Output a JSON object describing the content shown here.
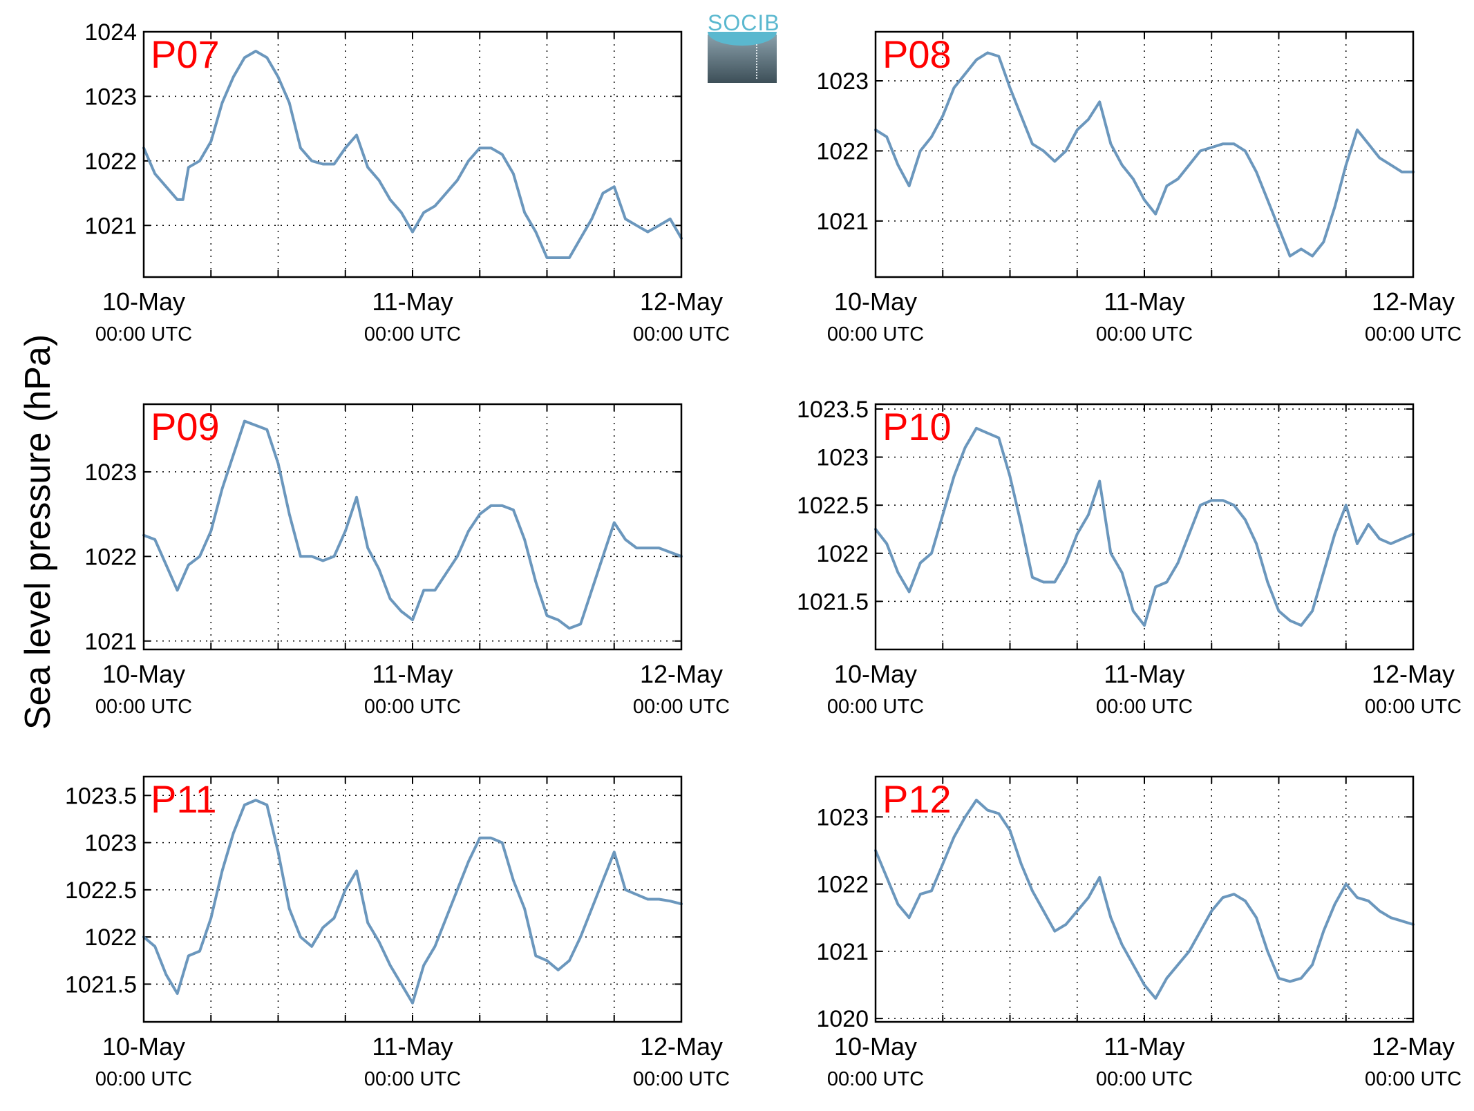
{
  "logo": {
    "text": "SOCIB"
  },
  "figure": {
    "ylabel": "Sea level pressure (hPa)",
    "line_color": "#6b97bd",
    "panel_label_color": "#ff0000"
  },
  "chart_data": [
    {
      "type": "line",
      "panel_label": "P07",
      "x_tick_labels": [
        {
          "day": "10-May",
          "time": "00:00 UTC"
        },
        {
          "day": "11-May",
          "time": "00:00 UTC"
        },
        {
          "day": "12-May",
          "time": "00:00 UTC"
        }
      ],
      "xlim_hours": [
        0,
        48
      ],
      "ylim": [
        1020.2,
        1024
      ],
      "yticks": [
        1021,
        1022,
        1023,
        1024
      ],
      "x_hours": [
        0,
        1,
        2,
        3,
        3.5,
        4,
        5,
        6,
        7,
        8,
        9,
        10,
        11,
        12,
        13,
        14,
        15,
        16,
        17,
        18,
        19,
        20,
        21,
        22,
        23,
        24,
        25,
        26,
        27,
        28,
        29,
        30,
        31,
        32,
        33,
        34,
        35,
        36,
        37,
        38,
        39,
        40,
        41,
        42,
        43,
        44,
        45,
        46,
        47,
        48
      ],
      "values": [
        1022.2,
        1021.8,
        1021.6,
        1021.4,
        1021.4,
        1021.9,
        1022.0,
        1022.3,
        1022.9,
        1023.3,
        1023.6,
        1023.7,
        1023.6,
        1023.3,
        1022.9,
        1022.2,
        1022.0,
        1021.95,
        1021.95,
        1022.2,
        1022.4,
        1021.9,
        1021.7,
        1021.4,
        1021.2,
        1020.9,
        1021.2,
        1021.3,
        1021.5,
        1021.7,
        1022.0,
        1022.2,
        1022.2,
        1022.1,
        1021.8,
        1021.2,
        1020.9,
        1020.5,
        1020.5,
        1020.5,
        1020.8,
        1021.1,
        1021.5,
        1021.6,
        1021.1,
        1021.0,
        1020.9,
        1021.0,
        1021.1,
        1020.8
      ]
    },
    {
      "type": "line",
      "panel_label": "P08",
      "x_tick_labels": [
        {
          "day": "10-May",
          "time": "00:00 UTC"
        },
        {
          "day": "11-May",
          "time": "00:00 UTC"
        },
        {
          "day": "12-May",
          "time": "00:00 UTC"
        }
      ],
      "xlim_hours": [
        0,
        48
      ],
      "ylim": [
        1020.2,
        1023.7
      ],
      "yticks": [
        1021,
        1022,
        1023
      ],
      "x_hours": [
        0,
        1,
        2,
        3,
        4,
        5,
        6,
        7,
        8,
        9,
        10,
        11,
        12,
        13,
        14,
        15,
        16,
        17,
        18,
        19,
        20,
        21,
        22,
        23,
        24,
        25,
        26,
        27,
        28,
        29,
        30,
        31,
        32,
        33,
        34,
        35,
        36,
        37,
        38,
        39,
        40,
        41,
        42,
        43,
        44,
        45,
        46,
        47,
        48
      ],
      "values": [
        1022.3,
        1022.2,
        1021.8,
        1021.5,
        1022.0,
        1022.2,
        1022.5,
        1022.9,
        1023.1,
        1023.3,
        1023.4,
        1023.35,
        1022.9,
        1022.5,
        1022.1,
        1022.0,
        1021.85,
        1022.0,
        1022.3,
        1022.45,
        1022.7,
        1022.1,
        1021.8,
        1021.6,
        1021.3,
        1021.1,
        1021.5,
        1021.6,
        1021.8,
        1022.0,
        1022.05,
        1022.1,
        1022.1,
        1022.0,
        1021.7,
        1021.3,
        1020.9,
        1020.5,
        1020.6,
        1020.5,
        1020.7,
        1021.2,
        1021.8,
        1022.3,
        1022.1,
        1021.9,
        1021.8,
        1021.7,
        1021.7
      ]
    },
    {
      "type": "line",
      "panel_label": "P09",
      "x_tick_labels": [
        {
          "day": "10-May",
          "time": "00:00 UTC"
        },
        {
          "day": "11-May",
          "time": "00:00 UTC"
        },
        {
          "day": "12-May",
          "time": "00:00 UTC"
        }
      ],
      "xlim_hours": [
        0,
        48
      ],
      "ylim": [
        1020.9,
        1023.8
      ],
      "yticks": [
        1021,
        1022,
        1023
      ],
      "x_hours": [
        0,
        1,
        2,
        3,
        4,
        5,
        6,
        7,
        8,
        9,
        10,
        11,
        12,
        13,
        14,
        15,
        16,
        17,
        18,
        19,
        20,
        21,
        22,
        23,
        24,
        25,
        26,
        27,
        28,
        29,
        30,
        31,
        32,
        33,
        34,
        35,
        36,
        37,
        38,
        39,
        40,
        41,
        42,
        43,
        44,
        45,
        46,
        47,
        48
      ],
      "values": [
        1022.25,
        1022.2,
        1021.9,
        1021.6,
        1021.9,
        1022.0,
        1022.3,
        1022.8,
        1023.2,
        1023.6,
        1023.55,
        1023.5,
        1023.1,
        1022.5,
        1022.0,
        1022.0,
        1021.95,
        1022.0,
        1022.3,
        1022.7,
        1022.1,
        1021.85,
        1021.5,
        1021.35,
        1021.25,
        1021.6,
        1021.6,
        1021.8,
        1022.0,
        1022.3,
        1022.5,
        1022.6,
        1022.6,
        1022.55,
        1022.2,
        1021.7,
        1021.3,
        1021.25,
        1021.15,
        1021.2,
        1021.6,
        1022.0,
        1022.4,
        1022.2,
        1022.1,
        1022.1,
        1022.1,
        1022.05,
        1022.0
      ]
    },
    {
      "type": "line",
      "panel_label": "P10",
      "x_tick_labels": [
        {
          "day": "10-May",
          "time": "00:00 UTC"
        },
        {
          "day": "11-May",
          "time": "00:00 UTC"
        },
        {
          "day": "12-May",
          "time": "00:00 UTC"
        }
      ],
      "xlim_hours": [
        0,
        48
      ],
      "ylim": [
        1021.0,
        1023.55
      ],
      "yticks": [
        1021.5,
        1022,
        1022.5,
        1023,
        1023.5
      ],
      "x_hours": [
        0,
        1,
        2,
        3,
        4,
        5,
        6,
        7,
        8,
        9,
        10,
        11,
        12,
        13,
        14,
        15,
        16,
        17,
        18,
        19,
        20,
        21,
        22,
        23,
        24,
        25,
        26,
        27,
        28,
        29,
        30,
        31,
        32,
        33,
        34,
        35,
        36,
        37,
        38,
        39,
        40,
        41,
        42,
        43,
        44,
        45,
        46,
        47,
        48
      ],
      "values": [
        1022.25,
        1022.1,
        1021.8,
        1021.6,
        1021.9,
        1022.0,
        1022.4,
        1022.8,
        1023.1,
        1023.3,
        1023.25,
        1023.2,
        1022.8,
        1022.3,
        1021.75,
        1021.7,
        1021.7,
        1021.9,
        1022.2,
        1022.4,
        1022.75,
        1022.0,
        1021.8,
        1021.4,
        1021.25,
        1021.65,
        1021.7,
        1021.9,
        1022.2,
        1022.5,
        1022.55,
        1022.55,
        1022.5,
        1022.35,
        1022.1,
        1021.7,
        1021.4,
        1021.3,
        1021.25,
        1021.4,
        1021.8,
        1022.2,
        1022.5,
        1022.1,
        1022.3,
        1022.15,
        1022.1,
        1022.15,
        1022.2
      ]
    },
    {
      "type": "line",
      "panel_label": "P11",
      "x_tick_labels": [
        {
          "day": "10-May",
          "time": "00:00 UTC"
        },
        {
          "day": "11-May",
          "time": "00:00 UTC"
        },
        {
          "day": "12-May",
          "time": "00:00 UTC"
        }
      ],
      "xlim_hours": [
        0,
        48
      ],
      "ylim": [
        1021.1,
        1023.7
      ],
      "yticks": [
        1021.5,
        1022,
        1022.5,
        1023,
        1023.5
      ],
      "x_hours": [
        0,
        1,
        2,
        3,
        4,
        5,
        6,
        7,
        8,
        9,
        10,
        11,
        12,
        13,
        14,
        15,
        16,
        17,
        18,
        19,
        20,
        21,
        22,
        23,
        24,
        25,
        26,
        27,
        28,
        29,
        30,
        31,
        32,
        33,
        34,
        35,
        36,
        37,
        38,
        39,
        40,
        41,
        42,
        43,
        44,
        45,
        46,
        47,
        48
      ],
      "values": [
        1022.0,
        1021.9,
        1021.6,
        1021.4,
        1021.8,
        1021.85,
        1022.2,
        1022.7,
        1023.1,
        1023.4,
        1023.45,
        1023.4,
        1022.9,
        1022.3,
        1022.0,
        1021.9,
        1022.1,
        1022.2,
        1022.5,
        1022.7,
        1022.15,
        1021.95,
        1021.7,
        1021.5,
        1021.3,
        1021.7,
        1021.9,
        1022.2,
        1022.5,
        1022.8,
        1023.05,
        1023.05,
        1023.0,
        1022.6,
        1022.3,
        1021.8,
        1021.75,
        1021.65,
        1021.75,
        1022.0,
        1022.3,
        1022.6,
        1022.9,
        1022.5,
        1022.45,
        1022.4,
        1022.4,
        1022.38,
        1022.35
      ]
    },
    {
      "type": "line",
      "panel_label": "P12",
      "x_tick_labels": [
        {
          "day": "10-May",
          "time": "00:00 UTC"
        },
        {
          "day": "11-May",
          "time": "00:00 UTC"
        },
        {
          "day": "12-May",
          "time": "00:00 UTC"
        }
      ],
      "xlim_hours": [
        0,
        48
      ],
      "ylim": [
        1019.95,
        1023.6
      ],
      "yticks": [
        1020,
        1021,
        1022,
        1023
      ],
      "x_hours": [
        0,
        1,
        2,
        3,
        4,
        5,
        6,
        7,
        8,
        9,
        10,
        11,
        12,
        13,
        14,
        15,
        16,
        17,
        18,
        19,
        20,
        21,
        22,
        23,
        24,
        25,
        26,
        27,
        28,
        29,
        30,
        31,
        32,
        33,
        34,
        35,
        36,
        37,
        38,
        39,
        40,
        41,
        42,
        43,
        44,
        45,
        46,
        47,
        48
      ],
      "values": [
        1022.5,
        1022.1,
        1021.7,
        1021.5,
        1021.85,
        1021.9,
        1022.3,
        1022.7,
        1023.0,
        1023.25,
        1023.1,
        1023.05,
        1022.8,
        1022.3,
        1021.9,
        1021.6,
        1021.3,
        1021.4,
        1021.6,
        1021.8,
        1022.1,
        1021.5,
        1021.1,
        1020.8,
        1020.5,
        1020.3,
        1020.6,
        1020.8,
        1021.0,
        1021.3,
        1021.6,
        1021.8,
        1021.85,
        1021.75,
        1021.5,
        1021.0,
        1020.6,
        1020.55,
        1020.6,
        1020.8,
        1021.3,
        1021.7,
        1022.0,
        1021.8,
        1021.75,
        1021.6,
        1021.5,
        1021.45,
        1021.4
      ]
    }
  ]
}
